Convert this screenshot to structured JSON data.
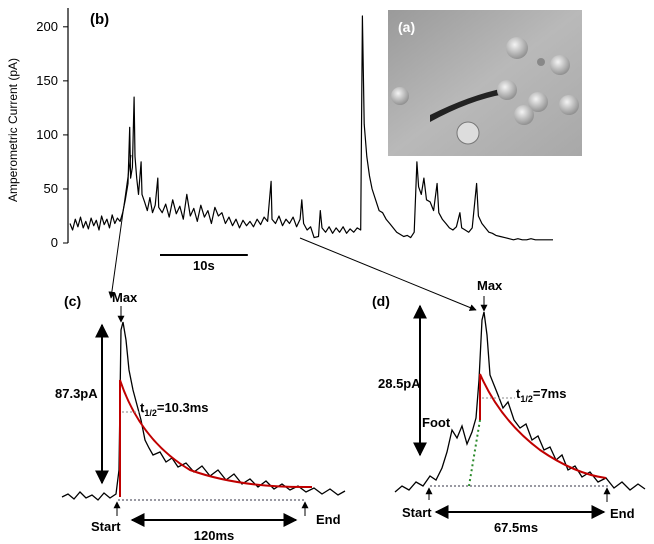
{
  "chart_data": {
    "type": "line",
    "panel_label": "(b)",
    "ylabel": "Amperometric Current (pA)",
    "x": [
      0,
      0.3,
      0.6,
      0.9,
      1.2,
      1.5,
      1.8,
      2.1,
      2.4,
      2.7,
      3,
      3.3,
      3.6,
      3.9,
      4.2,
      4.5,
      4.8,
      5.1,
      5.4,
      5.7,
      6,
      6.3,
      6.6,
      6.8,
      6.9,
      7.1,
      7.3,
      7.4,
      7.6,
      7.8,
      8.1,
      8.2,
      8.5,
      8.8,
      9.1,
      9.4,
      9.7,
      10,
      10.1,
      10.5,
      10.9,
      11.3,
      11.7,
      12.1,
      12.5,
      12.9,
      13.3,
      13.7,
      14.1,
      14.5,
      14.9,
      15.3,
      15.7,
      16.1,
      16.5,
      16.9,
      17.3,
      17.7,
      18.1,
      18.5,
      18.9,
      19.3,
      19.7,
      20.1,
      20.5,
      20.9,
      21.3,
      21.7,
      22.1,
      22.5,
      22.9,
      23,
      23.4,
      23.8,
      24.2,
      24.6,
      25,
      25.4,
      25.8,
      26.2,
      26.4,
      26.6,
      27,
      27.4,
      27.8,
      28.3,
      28.5,
      28.7,
      29.1,
      29.5,
      29.9,
      30.3,
      30.7,
      31.1,
      31.5,
      31.9,
      32.3,
      32.7,
      33.1,
      33.3,
      33.5,
      33.8,
      34.1,
      34.4,
      34.8,
      35.2,
      35.6,
      36,
      36.4,
      36.8,
      37.2,
      37.6,
      38,
      38.4,
      38.8,
      39.2,
      39.5,
      39.7,
      40,
      40.3,
      40.6,
      41,
      41.4,
      41.8,
      42,
      42.4,
      42.8,
      43.2,
      43.6,
      44,
      44.4,
      44.6,
      45,
      45.4,
      45.8,
      46.3,
      46.5,
      46.9,
      47.3,
      47.7,
      48.1,
      48.5,
      49,
      49.5,
      50,
      50.5,
      51,
      51.5,
      52,
      52.5,
      53,
      53.5,
      54,
      54.5,
      55
    ],
    "series": [
      {
        "color": "#000000",
        "values": [
          18,
          12,
          22,
          15,
          24,
          14,
          20,
          13,
          23,
          16,
          21,
          12,
          25,
          17,
          22,
          14,
          26,
          18,
          23,
          20,
          28,
          40,
          55,
          107,
          60,
          70,
          135,
          80,
          60,
          45,
          75,
          45,
          38,
          30,
          42,
          28,
          35,
          60,
          33,
          28,
          36,
          24,
          40,
          27,
          34,
          22,
          45,
          25,
          32,
          20,
          35,
          24,
          30,
          18,
          33,
          25,
          28,
          18,
          24,
          16,
          22,
          14,
          21,
          16,
          20,
          15,
          22,
          17,
          24,
          20,
          57,
          22,
          18,
          25,
          16,
          22,
          18,
          24,
          15,
          22,
          40,
          18,
          12,
          15,
          5,
          6,
          30,
          14,
          10,
          15,
          9,
          14,
          10,
          15,
          9,
          13,
          10,
          14,
          12,
          210,
          110,
          80,
          62,
          50,
          40,
          30,
          28,
          22,
          18,
          14,
          10,
          8,
          6,
          7,
          5,
          10,
          75,
          52,
          45,
          60,
          40,
          38,
          30,
          55,
          28,
          22,
          18,
          14,
          12,
          15,
          28,
          14,
          12,
          10,
          14,
          55,
          25,
          18,
          14,
          10,
          9,
          7,
          6,
          5,
          4,
          3,
          4,
          3,
          3,
          4,
          3,
          3,
          3,
          3,
          3
        ]
      }
    ],
    "xlim": [
      0,
      55
    ],
    "ylim": [
      0,
      210
    ],
    "yticks": [
      0,
      50,
      100,
      150,
      200
    ],
    "scale_bar": {
      "value": 10,
      "label": "10s"
    }
  },
  "panels": {
    "a": {
      "label": "(a)"
    },
    "c": {
      "label": "(c)",
      "max": "Max",
      "amplitude": "87.3pA",
      "t_half": {
        "symbol": "t",
        "subscript": "1/2",
        "text": "=10.3ms"
      },
      "start": "Start",
      "duration": "120ms",
      "end": "End"
    },
    "d": {
      "label": "(d)",
      "max": "Max",
      "amplitude": "28.5pA",
      "foot": "Foot",
      "t_half": {
        "symbol": "t",
        "subscript": "1/2",
        "text": "=7ms"
      },
      "start": "Start",
      "duration": "67.5ms",
      "end": "End"
    }
  }
}
